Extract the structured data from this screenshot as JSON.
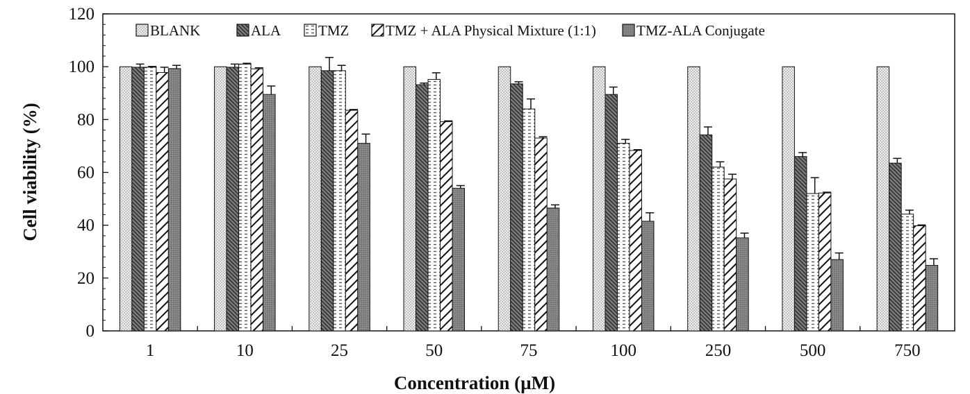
{
  "chart_data": {
    "type": "bar",
    "title": "",
    "xlabel": "Concentration (µM)",
    "ylabel": "Cell viability  (%)",
    "ylim": [
      0,
      120
    ],
    "yticks": [
      0,
      20,
      40,
      60,
      80,
      100,
      120
    ],
    "legend_position": "top",
    "grid": false,
    "categories": [
      "1",
      "10",
      "25",
      "50",
      "75",
      "100",
      "250",
      "500",
      "750"
    ],
    "series": [
      {
        "name": "BLANK",
        "pattern": "dots",
        "values": [
          100,
          100,
          100,
          100,
          100,
          100,
          100,
          100,
          100
        ],
        "errors": [
          0,
          0,
          0,
          0,
          0,
          0,
          0,
          0,
          0
        ]
      },
      {
        "name": "ALA",
        "pattern": "dense-hatch",
        "values": [
          99.8,
          99.8,
          98.5,
          93.2,
          93.5,
          89.5,
          74.2,
          66,
          63.5
        ],
        "errors": [
          1.2,
          1.2,
          5,
          0.6,
          0.8,
          2.8,
          3,
          1.5,
          1.8
        ]
      },
      {
        "name": "TMZ",
        "pattern": "horizontal-dash",
        "values": [
          99.8,
          101,
          98.5,
          95.2,
          84,
          71,
          62,
          52,
          44.2
        ],
        "errors": [
          0.3,
          0.3,
          2,
          2.5,
          3.8,
          1.5,
          2,
          6,
          1.5
        ]
      },
      {
        "name": "TMZ + ALA Physical Mixture (1:1)",
        "pattern": "diagonal",
        "values": [
          97.8,
          99.2,
          83.5,
          79.2,
          73,
          68.3,
          57.5,
          52.2,
          39.8
        ],
        "errors": [
          2,
          0.4,
          0.3,
          0.3,
          0.5,
          0.3,
          1.8,
          0.3,
          0.3
        ]
      },
      {
        "name": "TMZ-ALA Conjugate",
        "pattern": "dark-dots",
        "values": [
          99.3,
          89.5,
          71,
          54,
          46.5,
          41.5,
          35.2,
          27,
          24.8
        ],
        "errors": [
          1.2,
          3.2,
          3.5,
          1,
          1.2,
          3.2,
          1.8,
          2.5,
          2.5
        ]
      }
    ]
  }
}
